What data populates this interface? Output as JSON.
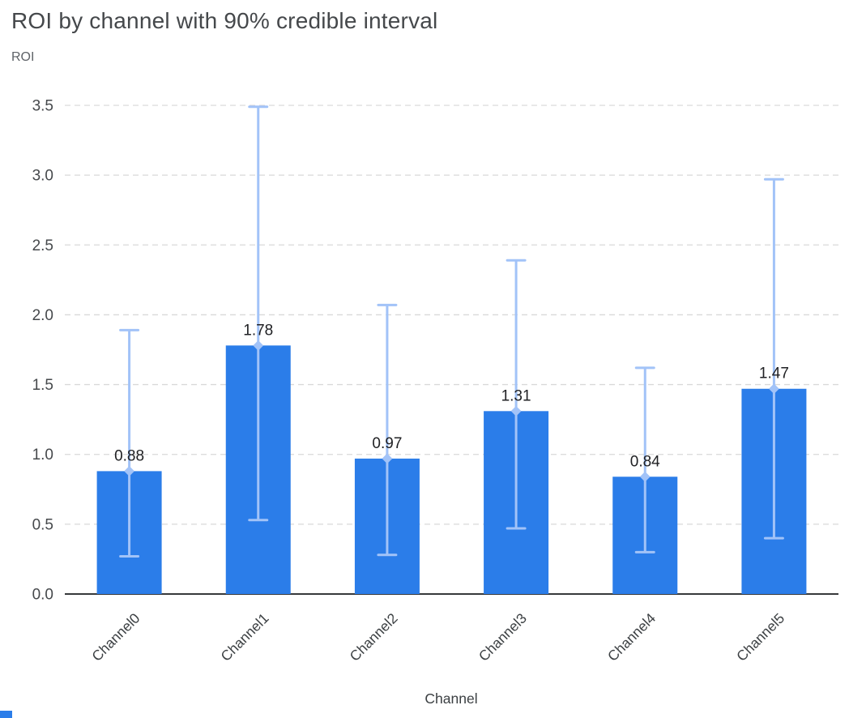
{
  "header": {
    "title": "ROI by channel with 90% credible interval"
  },
  "chart_data": {
    "type": "bar",
    "title": "ROI by channel with 90% credible interval",
    "xlabel": "Channel",
    "ylabel": "ROI",
    "categories": [
      "Channel0",
      "Channel1",
      "Channel2",
      "Channel3",
      "Channel4",
      "Channel5"
    ],
    "series": [
      {
        "name": "ROI",
        "values": [
          0.88,
          1.78,
          0.97,
          1.31,
          0.84,
          1.47
        ]
      }
    ],
    "value_labels": [
      "0.88",
      "1.78",
      "0.97",
      "1.31",
      "0.84",
      "1.47"
    ],
    "error_low": [
      0.27,
      0.53,
      0.28,
      0.47,
      0.3,
      0.4
    ],
    "error_high": [
      1.89,
      3.49,
      2.07,
      2.39,
      1.62,
      2.97
    ],
    "y_ticks": [
      0.0,
      0.5,
      1.0,
      1.5,
      2.0,
      2.5,
      3.0,
      3.5
    ],
    "ylim": [
      0,
      3.5
    ],
    "grid": "horizontal-dashed",
    "legend": "none",
    "colors": {
      "bar": "#2b7de9",
      "error_bar": "#a2c3f8",
      "grid": "#d9d9d9",
      "axis": "#37393b",
      "title": "#45484b",
      "y_tick": "#46494c",
      "x_tick": "#3c4043",
      "value_label": "#202124",
      "axis_label": "#5f6368"
    }
  }
}
